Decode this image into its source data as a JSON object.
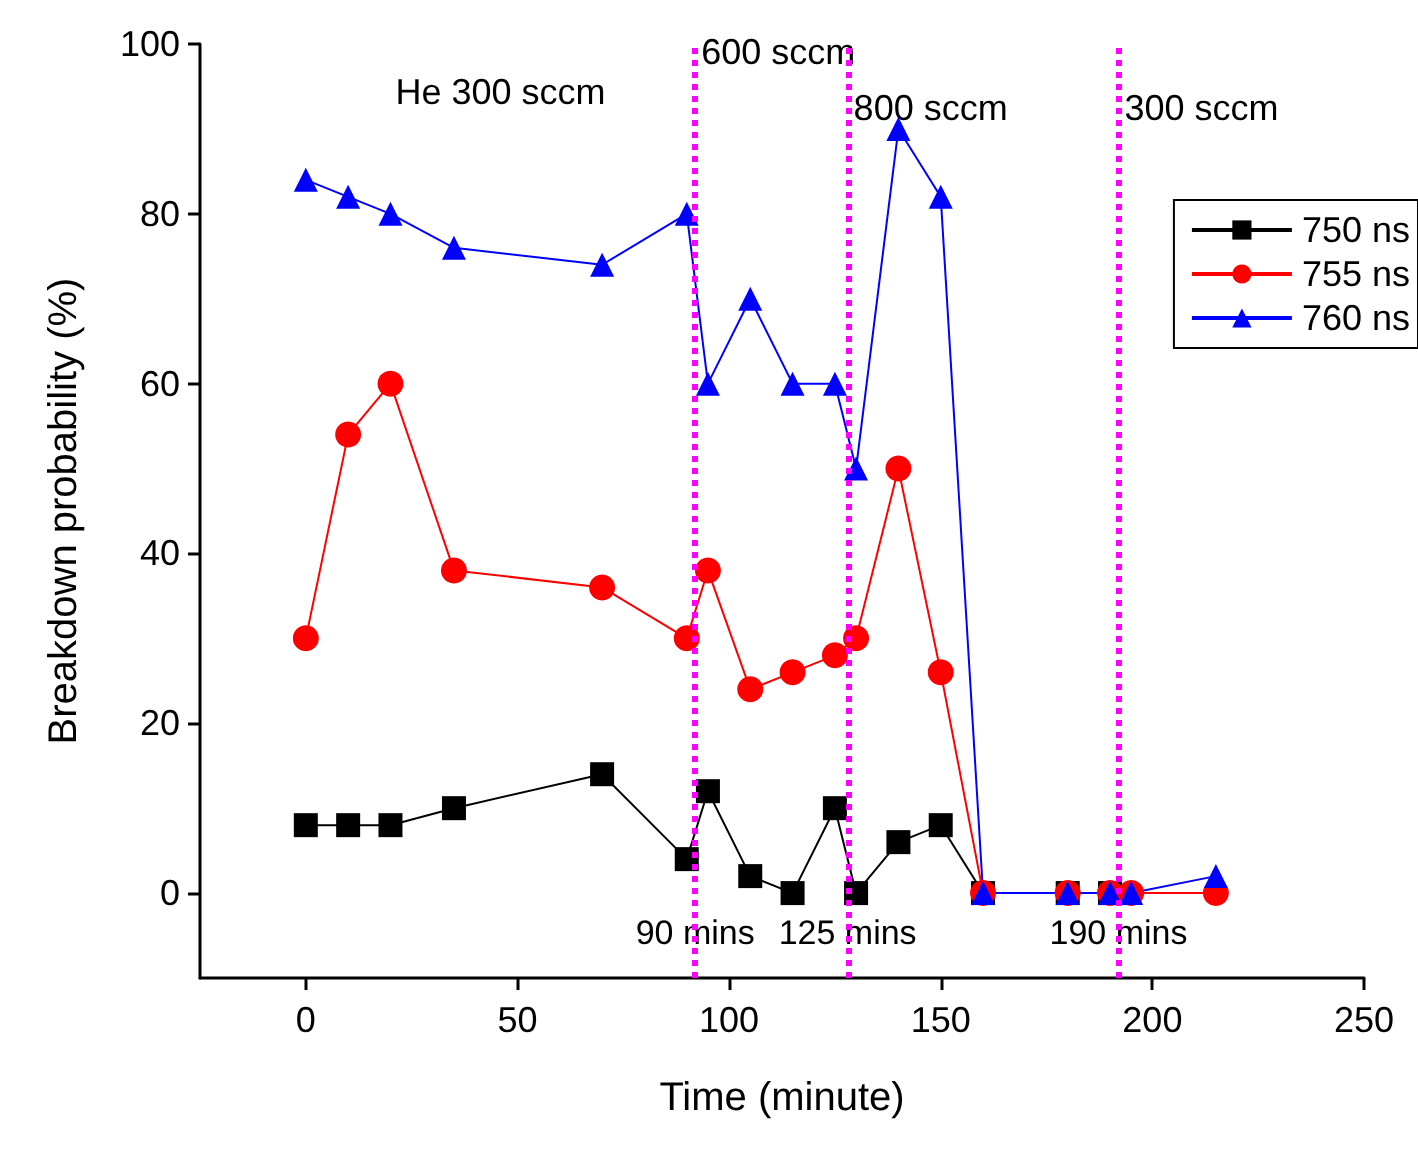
{
  "chart_data": {
    "type": "line",
    "xlabel": "Time (minute)",
    "ylabel": "Breakdown probability (%)",
    "x": [
      0,
      10,
      20,
      35,
      70,
      90,
      95,
      105,
      115,
      125,
      130,
      140,
      150,
      160,
      180,
      190,
      195,
      215
    ],
    "series": [
      {
        "name": "750 ns",
        "color": "#000000",
        "marker": "square",
        "values": [
          8,
          8,
          8,
          10,
          14,
          4,
          12,
          2,
          0,
          10,
          0,
          6,
          8,
          0,
          0,
          0,
          null,
          null
        ]
      },
      {
        "name": "755 ns",
        "color": "#ff0000",
        "marker": "circle",
        "values": [
          30,
          54,
          60,
          38,
          36,
          30,
          38,
          24,
          26,
          28,
          30,
          50,
          26,
          0,
          0,
          0,
          0,
          0
        ]
      },
      {
        "name": "760 ns",
        "color": "#0000ff",
        "marker": "triangle",
        "values": [
          84,
          82,
          80,
          76,
          74,
          80,
          60,
          70,
          60,
          60,
          50,
          90,
          82,
          0,
          0,
          0,
          0,
          2
        ]
      }
    ],
    "xlim": [
      -25,
      250
    ],
    "xticks": [
      0,
      50,
      100,
      150,
      200,
      250
    ],
    "ylim": [
      -10,
      100
    ],
    "yticks": [
      0,
      20,
      40,
      60,
      80,
      100
    ],
    "ref_lines": [
      {
        "axis": "x",
        "value": 92,
        "label": "90 mins",
        "color": "#ff00ff",
        "line_style": "dotted"
      },
      {
        "axis": "x",
        "value": 128,
        "label": "125 mins",
        "color": "#ff00ff",
        "line_style": "dotted"
      },
      {
        "axis": "x",
        "value": 192,
        "label": "190 mins",
        "color": "#ff00ff",
        "line_style": "dotted"
      }
    ],
    "annotations": [
      "He 300 sccm",
      "600 sccm",
      "800 sccm",
      "300 sccm"
    ],
    "line_style": "solid",
    "grid": false,
    "legend": "top right"
  }
}
